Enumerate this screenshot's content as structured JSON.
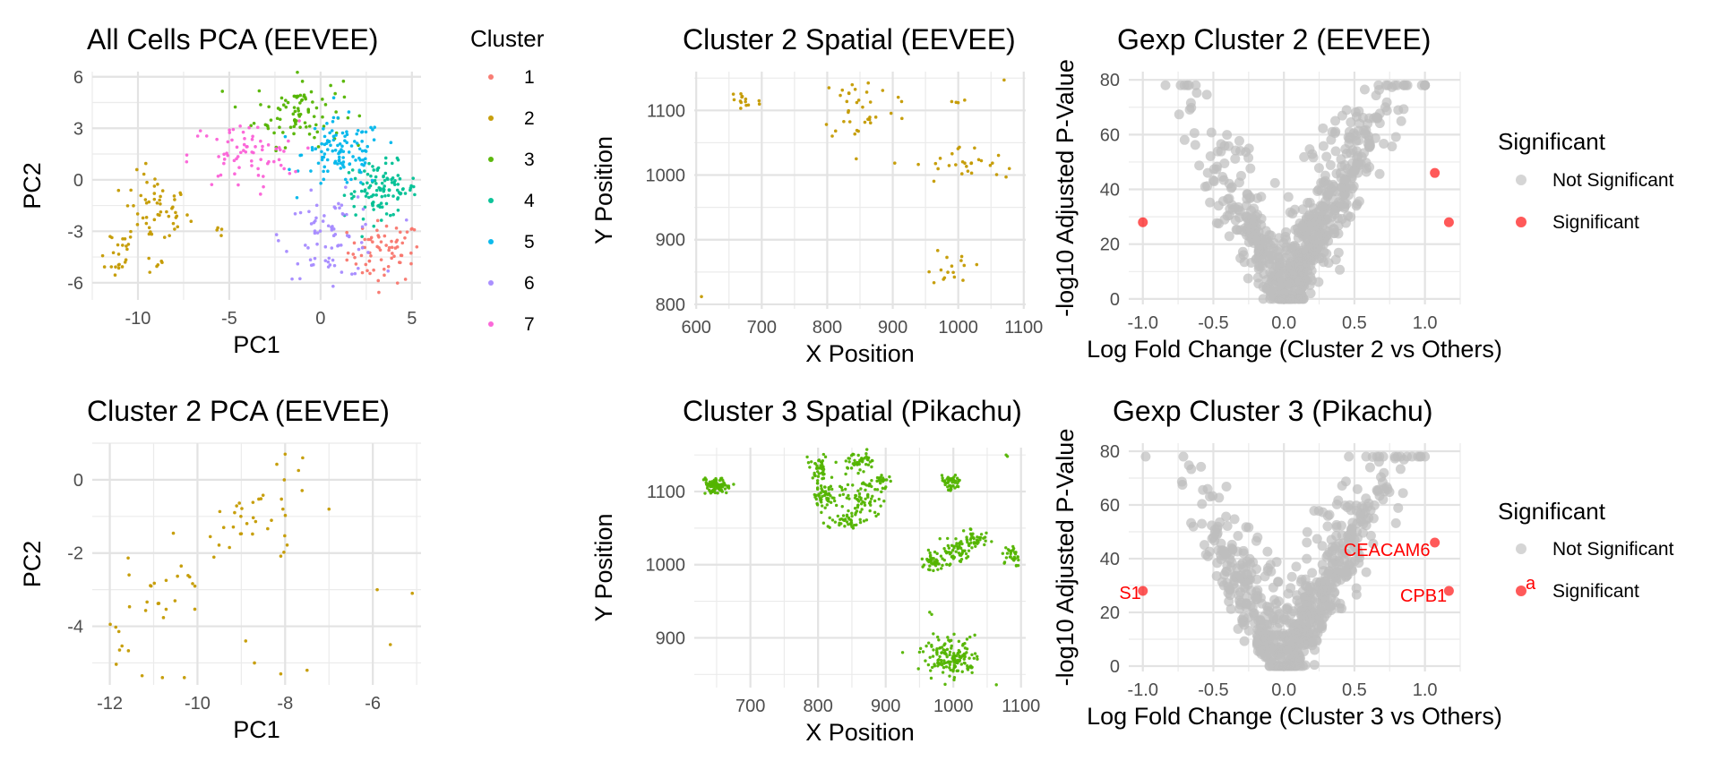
{
  "chart_data": [
    {
      "id": "p1",
      "type": "scatter",
      "title": "All Cells PCA (EEVEE)",
      "xlabel": "PC1",
      "ylabel": "PC2",
      "xlim": [
        -12.5,
        5.5
      ],
      "ylim": [
        -7,
        6.3
      ],
      "xticks": [
        -10,
        -5,
        0,
        5
      ],
      "xtick_labels": [
        "-10",
        "-5",
        "0",
        "5"
      ],
      "yticks": [
        -6,
        -3,
        0,
        3,
        6
      ],
      "ytick_labels": [
        "-6",
        "-3",
        "0",
        "3",
        "6"
      ],
      "grid": true,
      "legend": {
        "title": "Cluster",
        "placement": "right",
        "entries": [
          {
            "label": "1",
            "color": "#F8766D"
          },
          {
            "label": "2",
            "color": "#C49A00"
          },
          {
            "label": "3",
            "color": "#53B400"
          },
          {
            "label": "4",
            "color": "#00C094"
          },
          {
            "label": "5",
            "color": "#00B6EB"
          },
          {
            "label": "6",
            "color": "#A58AFF"
          },
          {
            "label": "7",
            "color": "#FB61D7"
          }
        ]
      },
      "series": [
        {
          "name": "1",
          "color": "#F8766D",
          "clusters": [
            {
              "cx": 3.5,
              "cy": -4.2,
              "sx": 1.0,
              "sy": 0.9,
              "n": 70
            }
          ]
        },
        {
          "name": "2",
          "color": "#C49A00",
          "clusters": [
            {
              "cx": -9.0,
              "cy": -1.8,
              "sx": 0.9,
              "sy": 1.1,
              "n": 55
            },
            {
              "cx": -11.3,
              "cy": -4.2,
              "sx": 0.6,
              "sy": 0.8,
              "n": 22
            },
            {
              "cx": -8.8,
              "cy": -4.9,
              "sx": 0.6,
              "sy": 0.4,
              "n": 6
            },
            {
              "cx": -5.4,
              "cy": -3.0,
              "sx": 0.3,
              "sy": 0.2,
              "n": 4
            }
          ]
        },
        {
          "name": "3",
          "color": "#53B400",
          "clusters": [
            {
              "cx": -1.2,
              "cy": 4.0,
              "sx": 1.2,
              "sy": 1.0,
              "n": 90
            }
          ]
        },
        {
          "name": "4",
          "color": "#00C094",
          "clusters": [
            {
              "cx": 3.3,
              "cy": -0.6,
              "sx": 1.0,
              "sy": 0.8,
              "n": 110
            }
          ]
        },
        {
          "name": "5",
          "color": "#00B6EB",
          "clusters": [
            {
              "cx": 1.2,
              "cy": 1.5,
              "sx": 1.1,
              "sy": 1.0,
              "n": 110
            }
          ]
        },
        {
          "name": "6",
          "color": "#A58AFF",
          "clusters": [
            {
              "cx": 0.6,
              "cy": -3.3,
              "sx": 1.3,
              "sy": 1.2,
              "n": 75
            }
          ]
        },
        {
          "name": "7",
          "color": "#FB61D7",
          "clusters": [
            {
              "cx": -4.2,
              "cy": 1.4,
              "sx": 1.5,
              "sy": 1.0,
              "n": 70
            }
          ]
        }
      ]
    },
    {
      "id": "p2",
      "type": "scatter",
      "title": "Cluster 2 Spatial (EEVEE)",
      "xlabel": "X Position",
      "ylabel": "Y Position",
      "xlim": [
        597,
        1103
      ],
      "ylim": [
        793,
        1160
      ],
      "xticks": [
        600,
        700,
        800,
        900,
        1000,
        1100
      ],
      "xtick_labels": [
        "600",
        "700",
        "800",
        "900",
        "1000",
        "1100"
      ],
      "yticks": [
        800,
        900,
        1000,
        1100
      ],
      "ytick_labels": [
        "800",
        "900",
        "1000",
        "1100"
      ],
      "grid": true,
      "series": [
        {
          "name": "2",
          "color": "#C49A00",
          "clusters": [
            {
              "cx": 672,
              "cy": 1115,
              "sx": 14,
              "sy": 12,
              "n": 14
            },
            {
              "cx": 850,
              "cy": 1105,
              "sx": 30,
              "sy": 28,
              "n": 34
            },
            {
              "cx": 910,
              "cy": 1120,
              "sx": 10,
              "sy": 5,
              "n": 2
            },
            {
              "cx": 995,
              "cy": 1112,
              "sx": 10,
              "sy": 5,
              "n": 4
            },
            {
              "cx": 1005,
              "cy": 1015,
              "sx": 35,
              "sy": 15,
              "n": 26
            },
            {
              "cx": 990,
              "cy": 860,
              "sx": 16,
              "sy": 16,
              "n": 16
            }
          ],
          "points": [
            [
              608,
              812
            ],
            [
              1070,
              1147
            ],
            [
              1078,
              1010
            ],
            [
              1073,
              997
            ]
          ]
        }
      ]
    },
    {
      "id": "p3",
      "type": "scatter",
      "title": "Gexp Cluster 2 (EEVEE)",
      "xlabel": "Log Fold Change (Cluster 2 vs Others)",
      "ylabel": "-log10 Adjusted P-Value",
      "xlim": [
        -1.1,
        1.25
      ],
      "ylim": [
        -2,
        83
      ],
      "xticks": [
        -1.0,
        -0.5,
        0.0,
        0.5,
        1.0
      ],
      "xtick_labels": [
        "-1.0",
        "-0.5",
        "0.0",
        "0.5",
        "1.0"
      ],
      "yticks": [
        0,
        20,
        40,
        60,
        80
      ],
      "ytick_labels": [
        "0",
        "20",
        "40",
        "60",
        "80"
      ],
      "grid": true,
      "legend": {
        "title": "Significant",
        "placement": "right",
        "entries": [
          {
            "label": "Not Significant",
            "color": "#BEBEBE"
          },
          {
            "label": "Significant",
            "color": "#FF0000"
          }
        ]
      },
      "series": [
        {
          "name": "Not Significant",
          "color": "#BEBEBE",
          "volcano": true
        },
        {
          "name": "Significant",
          "color": "#FF0000",
          "points": [
            [
              -1.0,
              28
            ],
            [
              1.07,
              46
            ],
            [
              1.17,
              28
            ]
          ]
        }
      ]
    },
    {
      "id": "p4",
      "type": "scatter",
      "title": "Cluster 2 PCA (EEVEE)",
      "xlabel": "PC1",
      "ylabel": "PC2",
      "xlim": [
        -12.4,
        -4.9
      ],
      "ylim": [
        -5.6,
        1.0
      ],
      "xticks": [
        -12,
        -10,
        -8,
        -6
      ],
      "xtick_labels": [
        "-12",
        "-10",
        "-8",
        "-6"
      ],
      "yticks": [
        -4,
        -2,
        0
      ],
      "ytick_labels": [
        "-4",
        "-2",
        "0"
      ],
      "grid": true,
      "series": [
        {
          "name": "2",
          "color": "#C49A00",
          "clusters": [
            {
              "cx": -8.8,
              "cy": -1.0,
              "sx": 0.7,
              "sy": 0.6,
              "n": 35
            },
            {
              "cx": -10.6,
              "cy": -3.0,
              "sx": 0.6,
              "sy": 0.6,
              "n": 22
            },
            {
              "cx": -11.6,
              "cy": -4.6,
              "sx": 0.3,
              "sy": 0.5,
              "n": 8
            }
          ],
          "points": [
            [
              -8.0,
              0.7
            ],
            [
              -7.6,
              0.6
            ],
            [
              -10.8,
              -5.4
            ],
            [
              -10.3,
              -5.4
            ],
            [
              -8.7,
              -5.0
            ],
            [
              -8.1,
              -5.3
            ],
            [
              -7.5,
              -5.2
            ],
            [
              -5.9,
              -3.0
            ],
            [
              -5.1,
              -3.1
            ],
            [
              -5.6,
              -4.5
            ],
            [
              -7.0,
              -0.8
            ],
            [
              -8.9,
              -4.4
            ]
          ]
        }
      ]
    },
    {
      "id": "p5",
      "type": "scatter",
      "title": "Cluster 3 Spatial (Pikachu)",
      "xlabel": "X Position",
      "ylabel": "Y Position",
      "xlim": [
        617,
        1107
      ],
      "ylim": [
        832,
        1160
      ],
      "xticks": [
        700,
        800,
        900,
        1000,
        1100
      ],
      "xtick_labels": [
        "700",
        "800",
        "900",
        "1000",
        "1100"
      ],
      "yticks": [
        900,
        1000,
        1100
      ],
      "ytick_labels": [
        "900",
        "1000",
        "1100"
      ],
      "grid": true,
      "series": [
        {
          "name": "3",
          "color": "#53B400",
          "clusters": [
            {
              "cx": 650,
              "cy": 1108,
              "sx": 10,
              "sy": 7,
              "n": 90
            },
            {
              "cx": 800,
              "cy": 1130,
              "sx": 8,
              "sy": 7,
              "n": 40
            },
            {
              "cx": 815,
              "cy": 1095,
              "sx": 12,
              "sy": 10,
              "n": 55
            },
            {
              "cx": 840,
              "cy": 1060,
              "sx": 12,
              "sy": 8,
              "n": 45
            },
            {
              "cx": 860,
              "cy": 1140,
              "sx": 12,
              "sy": 6,
              "n": 45
            },
            {
              "cx": 870,
              "cy": 1095,
              "sx": 14,
              "sy": 12,
              "n": 60
            },
            {
              "cx": 895,
              "cy": 1115,
              "sx": 6,
              "sy": 5,
              "n": 20
            },
            {
              "cx": 997,
              "cy": 1113,
              "sx": 8,
              "sy": 6,
              "n": 45
            },
            {
              "cx": 970,
              "cy": 1005,
              "sx": 8,
              "sy": 6,
              "n": 40
            },
            {
              "cx": 1005,
              "cy": 1020,
              "sx": 12,
              "sy": 8,
              "n": 60
            },
            {
              "cx": 1030,
              "cy": 1035,
              "sx": 8,
              "sy": 6,
              "n": 35
            },
            {
              "cx": 1085,
              "cy": 1010,
              "sx": 6,
              "sy": 8,
              "n": 30
            },
            {
              "cx": 1000,
              "cy": 870,
              "sx": 20,
              "sy": 15,
              "n": 150
            }
          ],
          "points": [
            [
              1078,
              1150
            ],
            [
              1080,
              1148
            ],
            [
              925,
              880
            ],
            [
              965,
              935
            ],
            [
              968,
              932
            ]
          ]
        }
      ]
    },
    {
      "id": "p6",
      "type": "scatter",
      "title": "Gexp Cluster 3 (Pikachu)",
      "xlabel": "Log Fold Change (Cluster 3 vs Others)",
      "ylabel": "-log10 Adjusted P-Value",
      "xlim": [
        -1.1,
        1.25
      ],
      "ylim": [
        -2,
        83
      ],
      "xticks": [
        -1.0,
        -0.5,
        0.0,
        0.5,
        1.0
      ],
      "xtick_labels": [
        "-1.0",
        "-0.5",
        "0.0",
        "0.5",
        "1.0"
      ],
      "yticks": [
        0,
        20,
        40,
        60,
        80
      ],
      "ytick_labels": [
        "0",
        "20",
        "40",
        "60",
        "80"
      ],
      "grid": true,
      "legend": {
        "title": "Significant",
        "placement": "right",
        "entries": [
          {
            "label": "Not Significant",
            "color": "#BEBEBE"
          },
          {
            "label": "Significant",
            "color": "#FF0000"
          }
        ],
        "key_glyph_text": "a"
      },
      "annotations": [
        {
          "text": "CEACAM6",
          "x": 0.73,
          "y": 41
        },
        {
          "text": "CPB1",
          "x": 0.99,
          "y": 24
        },
        {
          "text": "S1",
          "x": -1.09,
          "y": 25
        }
      ],
      "series": [
        {
          "name": "Not Significant",
          "color": "#BEBEBE",
          "volcano": true
        },
        {
          "name": "Significant",
          "color": "#FF0000",
          "points": [
            [
              -1.0,
              28
            ],
            [
              1.07,
              46
            ],
            [
              1.17,
              28
            ]
          ]
        }
      ]
    }
  ]
}
